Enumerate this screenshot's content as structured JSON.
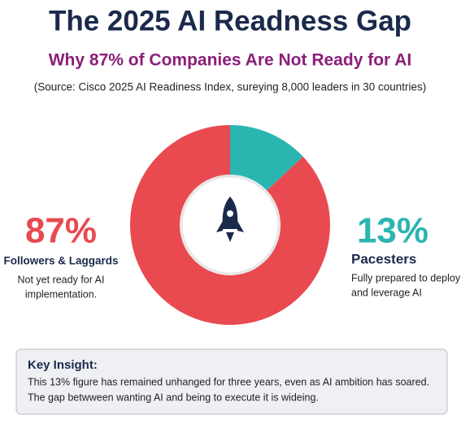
{
  "chart_data": {
    "type": "donut",
    "title": "The 2025 AI Readness Gap",
    "subtitle": "Why 87% of Companies Are Not Ready for AI",
    "source": "(Source: Cisco 2025 AI Readiness Index, sureying 8,000 leaders in 30 countries)",
    "categories": [
      "Followers & Laggards",
      "Pacesters"
    ],
    "values": [
      87,
      13
    ],
    "value_labels": [
      "87%",
      "13%"
    ],
    "colors": [
      "#e84a50",
      "#2bb5b0"
    ],
    "descriptions": [
      [
        "Not yet ready for AI",
        "implementation."
      ],
      [
        "Fully prepared to deploy",
        "and leverage AI"
      ]
    ]
  },
  "insight": {
    "heading": "Key Insight:",
    "lines": [
      "This 13% figure has remained unhanged for three years, even as AI ambition has soared.",
      "The gap betwween wanting AI and being to execute it is wideing."
    ]
  }
}
